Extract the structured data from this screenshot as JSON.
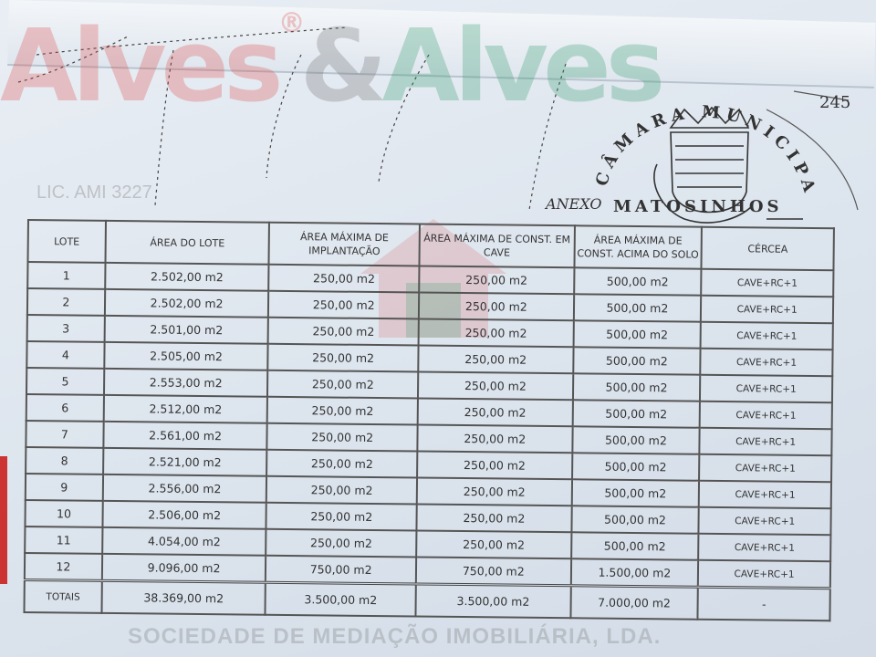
{
  "stamp": {
    "top_text": "CÂMARA MUNICIPAL",
    "bottom_text": "MATOSINHOS",
    "handwritten": "ANEXO",
    "page_number": "245"
  },
  "watermark": {
    "brand_left": "Alves",
    "amp": "&",
    "brand_right": "Alves",
    "registered": "®",
    "license": "LIC. AMI 3227",
    "subtitle": "SOCIEDADE DE MEDIAÇÃO IMOBILIÁRIA, LDA."
  },
  "table": {
    "headers": [
      "LOTE",
      "ÁREA DO LOTE",
      "ÁREA MÁXIMA DE IMPLANTAÇÃO",
      "ÁREA MÁXIMA DE CONST. EM CAVE",
      "ÁREA MÁXIMA DE CONST. ACIMA DO SOLO",
      "CÉRCEA"
    ],
    "rows": [
      [
        "1",
        "2.502,00 m2",
        "250,00 m2",
        "250,00 m2",
        "500,00 m2",
        "CAVE+RC+1"
      ],
      [
        "2",
        "2.502,00 m2",
        "250,00 m2",
        "250,00 m2",
        "500,00 m2",
        "CAVE+RC+1"
      ],
      [
        "3",
        "2.501,00 m2",
        "250,00 m2",
        "250,00 m2",
        "500,00 m2",
        "CAVE+RC+1"
      ],
      [
        "4",
        "2.505,00 m2",
        "250,00 m2",
        "250,00 m2",
        "500,00 m2",
        "CAVE+RC+1"
      ],
      [
        "5",
        "2.553,00 m2",
        "250,00 m2",
        "250,00 m2",
        "500,00 m2",
        "CAVE+RC+1"
      ],
      [
        "6",
        "2.512,00 m2",
        "250,00 m2",
        "250,00 m2",
        "500,00 m2",
        "CAVE+RC+1"
      ],
      [
        "7",
        "2.561,00 m2",
        "250,00 m2",
        "250,00 m2",
        "500,00 m2",
        "CAVE+RC+1"
      ],
      [
        "8",
        "2.521,00 m2",
        "250,00 m2",
        "250,00 m2",
        "500,00 m2",
        "CAVE+RC+1"
      ],
      [
        "9",
        "2.556,00 m2",
        "250,00 m2",
        "250,00 m2",
        "500,00 m2",
        "CAVE+RC+1"
      ],
      [
        "10",
        "2.506,00 m2",
        "250,00 m2",
        "250,00 m2",
        "500,00 m2",
        "CAVE+RC+1"
      ],
      [
        "11",
        "4.054,00 m2",
        "250,00 m2",
        "250,00 m2",
        "500,00 m2",
        "CAVE+RC+1"
      ],
      [
        "12",
        "9.096,00 m2",
        "750,00 m2",
        "750,00 m2",
        "1.500,00 m2",
        "CAVE+RC+1"
      ]
    ],
    "totals": [
      "TOTAIS",
      "38.369,00 m2",
      "3.500,00 m2",
      "3.500,00 m2",
      "7.000,00 m2",
      "-"
    ]
  }
}
